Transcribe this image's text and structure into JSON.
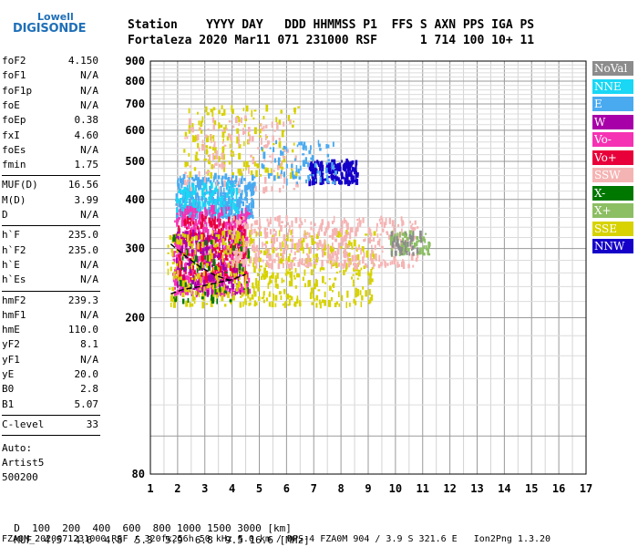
{
  "logo": {
    "line1": "Lowell",
    "line2": "DIGISONDE"
  },
  "header": {
    "labels": "Station    YYYY DAY   DDD HHMMSS P1  FFS S AXN PPS IGA PS",
    "values": "Fortaleza 2020 Mar11 071 231000 RSF      1 714 100 10+ 11"
  },
  "params": {
    "group1": [
      {
        "key": "foF2",
        "value": "4.150"
      },
      {
        "key": "foF1",
        "value": "N/A"
      },
      {
        "key": "foF1p",
        "value": "N/A"
      },
      {
        "key": "foE",
        "value": "N/A"
      },
      {
        "key": "foEp",
        "value": "0.38"
      },
      {
        "key": "fxI",
        "value": "4.60"
      },
      {
        "key": "foEs",
        "value": "N/A"
      },
      {
        "key": "fmin",
        "value": "1.75"
      }
    ],
    "group2": [
      {
        "key": "MUF(D)",
        "value": "16.56"
      },
      {
        "key": "M(D)",
        "value": "3.99"
      },
      {
        "key": "D",
        "value": "N/A"
      }
    ],
    "group3": [
      {
        "key": "h`F",
        "value": "235.0"
      },
      {
        "key": "h`F2",
        "value": "235.0"
      },
      {
        "key": "h`E",
        "value": "N/A"
      },
      {
        "key": "h`Es",
        "value": "N/A"
      }
    ],
    "group4": [
      {
        "key": "hmF2",
        "value": "239.3"
      },
      {
        "key": "hmF1",
        "value": "N/A"
      },
      {
        "key": "hmE",
        "value": "110.0"
      },
      {
        "key": "yF2",
        "value": "8.1"
      },
      {
        "key": "yF1",
        "value": "N/A"
      },
      {
        "key": "yE",
        "value": "20.0"
      },
      {
        "key": "B0",
        "value": "2.8"
      },
      {
        "key": "B1",
        "value": "5.07"
      }
    ],
    "group5": [
      {
        "key": "C-level",
        "value": "33"
      }
    ]
  },
  "notes": {
    "auto": "Auto:",
    "artist": "Artist5",
    "code": "500200"
  },
  "legend": [
    {
      "label": "NoVal",
      "color": "#8c8c8c"
    },
    {
      "label": "NNE",
      "color": "#19d7f5"
    },
    {
      "label": "E",
      "color": "#4aaaf0"
    },
    {
      "label": "W",
      "color": "#a800a8"
    },
    {
      "label": "Vo-",
      "color": "#f532b4"
    },
    {
      "label": "Vo+",
      "color": "#e8003a"
    },
    {
      "label": "SSW",
      "color": "#f5b4b4"
    },
    {
      "label": "X-",
      "color": "#007800"
    },
    {
      "label": "X+",
      "color": "#8cbe64"
    },
    {
      "label": "SSE",
      "color": "#d7d200"
    },
    {
      "label": "NNW",
      "color": "#1400c8"
    }
  ],
  "chart_data": {
    "type": "scatter",
    "xlim": [
      1,
      17
    ],
    "ylim": [
      80,
      900
    ],
    "x_ticks": [
      "1",
      "2",
      "3",
      "4",
      "5",
      "6",
      "7",
      "8",
      "9",
      "10",
      "11",
      "12",
      "13",
      "14",
      "15",
      "16",
      "17"
    ],
    "y_ticks": [
      "80",
      "200",
      "300",
      "400",
      "500",
      "600",
      "700",
      "800",
      "900"
    ],
    "y_tick_values": [
      80,
      200,
      300,
      400,
      500,
      600,
      700,
      800,
      900
    ],
    "grid": true,
    "clusters": [
      {
        "color": "#4aaaf0",
        "x": [
          1.9,
          4.8
        ],
        "y": [
          360,
          460
        ],
        "n": 380
      },
      {
        "color": "#19d7f5",
        "x": [
          1.9,
          4.2
        ],
        "y": [
          370,
          440
        ],
        "n": 120
      },
      {
        "color": "#1400c8",
        "x": [
          6.8,
          8.6
        ],
        "y": [
          440,
          500
        ],
        "n": 160
      },
      {
        "color": "#f532b4",
        "x": [
          1.8,
          4.6
        ],
        "y": [
          230,
          380
        ],
        "n": 520
      },
      {
        "color": "#e8003a",
        "x": [
          2.0,
          4.5
        ],
        "y": [
          250,
          360
        ],
        "n": 260
      },
      {
        "color": "#a800a8",
        "x": [
          1.9,
          4.3
        ],
        "y": [
          230,
          330
        ],
        "n": 180
      },
      {
        "color": "#d7d200",
        "x": [
          1.6,
          9.2
        ],
        "y": [
          215,
          330
        ],
        "n": 520
      },
      {
        "color": "#f5b4b4",
        "x": [
          4.0,
          10.8
        ],
        "y": [
          270,
          360
        ],
        "n": 420
      },
      {
        "color": "#8cbe64",
        "x": [
          9.8,
          11.2
        ],
        "y": [
          290,
          330
        ],
        "n": 60
      },
      {
        "color": "#8c8c8c",
        "x": [
          9.8,
          11.0
        ],
        "y": [
          290,
          330
        ],
        "n": 40
      },
      {
        "color": "#d7d200",
        "x": [
          2.2,
          6.4
        ],
        "y": [
          460,
          690
        ],
        "n": 160
      },
      {
        "color": "#f5b4b4",
        "x": [
          2.2,
          6.4
        ],
        "y": [
          420,
          650
        ],
        "n": 120
      },
      {
        "color": "#4aaaf0",
        "x": [
          5.0,
          7.8
        ],
        "y": [
          440,
          560
        ],
        "n": 80
      },
      {
        "color": "#007800",
        "x": [
          1.8,
          4.6
        ],
        "y": [
          220,
          320
        ],
        "n": 50
      }
    ],
    "traces": [
      {
        "color": "#000000",
        "points": [
          [
            1.75,
            230
          ],
          [
            2.2,
            236
          ],
          [
            2.8,
            240
          ],
          [
            3.4,
            245
          ],
          [
            4.0,
            250
          ],
          [
            4.5,
            258
          ]
        ]
      },
      {
        "color": "#000000",
        "points": [
          [
            1.75,
            308
          ],
          [
            2.2,
            290
          ],
          [
            2.8,
            270
          ],
          [
            3.4,
            256
          ],
          [
            4.0,
            248
          ]
        ]
      }
    ]
  },
  "footer": {
    "d_label": "D",
    "d_values": "  100  200  400  600  800 1000 1500 3000 [km]",
    "muf_label": "MUF",
    "muf_values": "  4.5  4.6  4.8  5.3  5.9  6.8  9.5 16.6 [MHz]",
    "file_line": "FZA0M_2020071231000.RSF / 320fx256h 50 kHz 5.0 km / DPS-4 FZA0M 904 / 3.9 S 321.6 E   Ion2Png 1.3.20"
  }
}
